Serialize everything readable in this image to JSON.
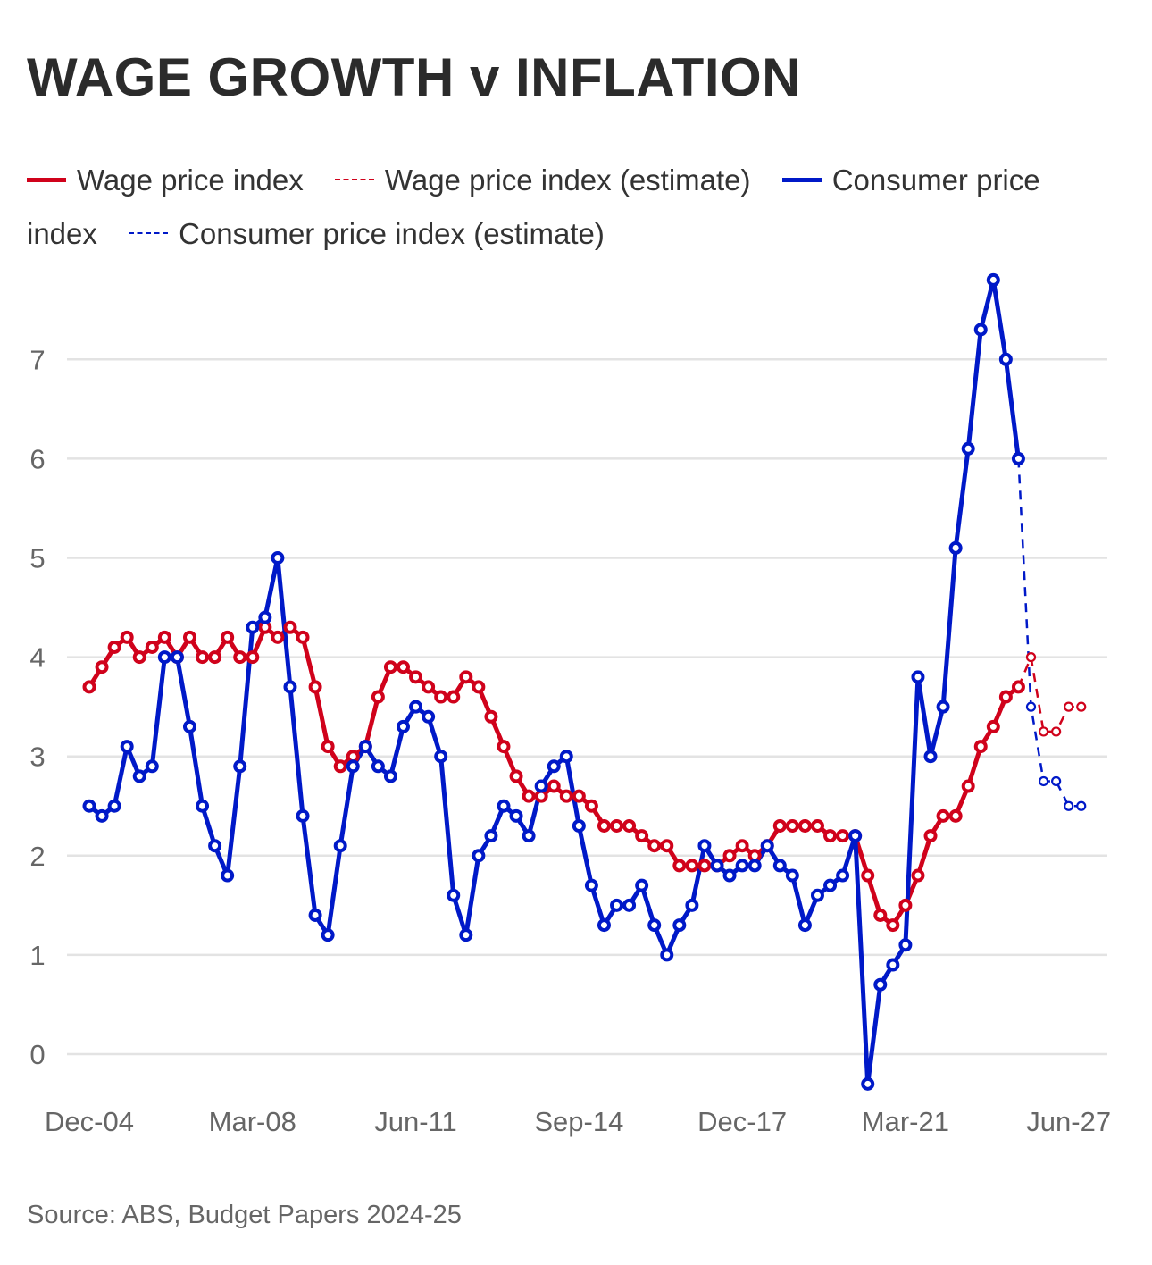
{
  "title": "WAGE GROWTH v INFLATION",
  "source": "Source: ABS, Budget Papers 2024-25",
  "colors": {
    "wage": "#d0021b",
    "cpi": "#0019c8",
    "grid": "#e3e3e3",
    "tick": "#666666"
  },
  "legend": [
    {
      "label": "Wage price index",
      "style": "solid",
      "color": "#d0021b"
    },
    {
      "label": "Wage price index (estimate)",
      "style": "dashed",
      "color": "#d0021b"
    },
    {
      "label": "Consumer price index",
      "style": "solid",
      "color": "#0019c8"
    },
    {
      "label": "Consumer price index (estimate)",
      "style": "dashed",
      "color": "#0019c8"
    }
  ],
  "chart_data": {
    "type": "line",
    "title": "WAGE GROWTH v INFLATION",
    "xlabel": "",
    "ylabel": "",
    "ylim": [
      -0.3,
      7.8
    ],
    "yticks": [
      0,
      1,
      2,
      3,
      4,
      5,
      6,
      7
    ],
    "grid": "horizontal",
    "legend_position": "top",
    "x_tick_labels": [
      {
        "index": 0,
        "label": "Dec-04"
      },
      {
        "index": 13,
        "label": "Mar-08"
      },
      {
        "index": 26,
        "label": "Jun-11"
      },
      {
        "index": 39,
        "label": "Sep-14"
      },
      {
        "index": 52,
        "label": "Dec-17"
      },
      {
        "index": 65,
        "label": "Mar-21"
      },
      {
        "index": 78,
        "label": "Jun-27"
      }
    ],
    "series": [
      {
        "name": "Wage price index",
        "color": "#d0021b",
        "style": "solid",
        "start_index": 0,
        "values": [
          3.7,
          3.9,
          4.1,
          4.2,
          4.0,
          4.1,
          4.2,
          4.0,
          4.2,
          4.0,
          4.0,
          4.2,
          4.0,
          4.0,
          4.3,
          4.2,
          4.3,
          4.2,
          3.7,
          3.1,
          2.9,
          3.0,
          3.1,
          3.6,
          3.9,
          3.9,
          3.8,
          3.7,
          3.6,
          3.6,
          3.8,
          3.7,
          3.4,
          3.1,
          2.8,
          2.6,
          2.6,
          2.7,
          2.6,
          2.6,
          2.5,
          2.3,
          2.3,
          2.3,
          2.2,
          2.1,
          2.1,
          1.9,
          1.9,
          1.9,
          1.9,
          2.0,
          2.1,
          2.0,
          2.1,
          2.3,
          2.3,
          2.3,
          2.3,
          2.2,
          2.2,
          2.2,
          1.8,
          1.4,
          1.3,
          1.5,
          1.8,
          2.2,
          2.4,
          2.4,
          2.7,
          3.1,
          3.3,
          3.6,
          3.7
        ]
      },
      {
        "name": "Wage price index (estimate)",
        "color": "#d0021b",
        "style": "dashed",
        "start_index": 75,
        "values": [
          4.0,
          3.25,
          3.25,
          3.5,
          3.5
        ]
      },
      {
        "name": "Consumer price index",
        "color": "#0019c8",
        "style": "solid",
        "start_index": 0,
        "values": [
          2.5,
          2.4,
          2.5,
          3.1,
          2.8,
          2.9,
          4.0,
          4.0,
          3.3,
          2.5,
          2.1,
          1.8,
          2.9,
          4.3,
          4.4,
          5.0,
          3.7,
          2.4,
          1.4,
          1.2,
          2.1,
          2.9,
          3.1,
          2.9,
          2.8,
          3.3,
          3.5,
          3.4,
          3.0,
          1.6,
          1.2,
          2.0,
          2.2,
          2.5,
          2.4,
          2.2,
          2.7,
          2.9,
          3.0,
          2.3,
          1.7,
          1.3,
          1.5,
          1.5,
          1.7,
          1.3,
          1.0,
          1.3,
          1.5,
          2.1,
          1.9,
          1.8,
          1.9,
          1.9,
          2.1,
          1.9,
          1.8,
          1.3,
          1.6,
          1.7,
          1.8,
          2.2,
          -0.3,
          0.7,
          0.9,
          1.1,
          3.8,
          3.0,
          3.5,
          5.1,
          6.1,
          7.3,
          7.8,
          7.0,
          6.0
        ]
      },
      {
        "name": "Consumer price index (estimate)",
        "color": "#0019c8",
        "style": "dashed",
        "start_index": 75,
        "values": [
          3.5,
          2.75,
          2.75,
          2.5,
          2.5
        ]
      }
    ]
  }
}
